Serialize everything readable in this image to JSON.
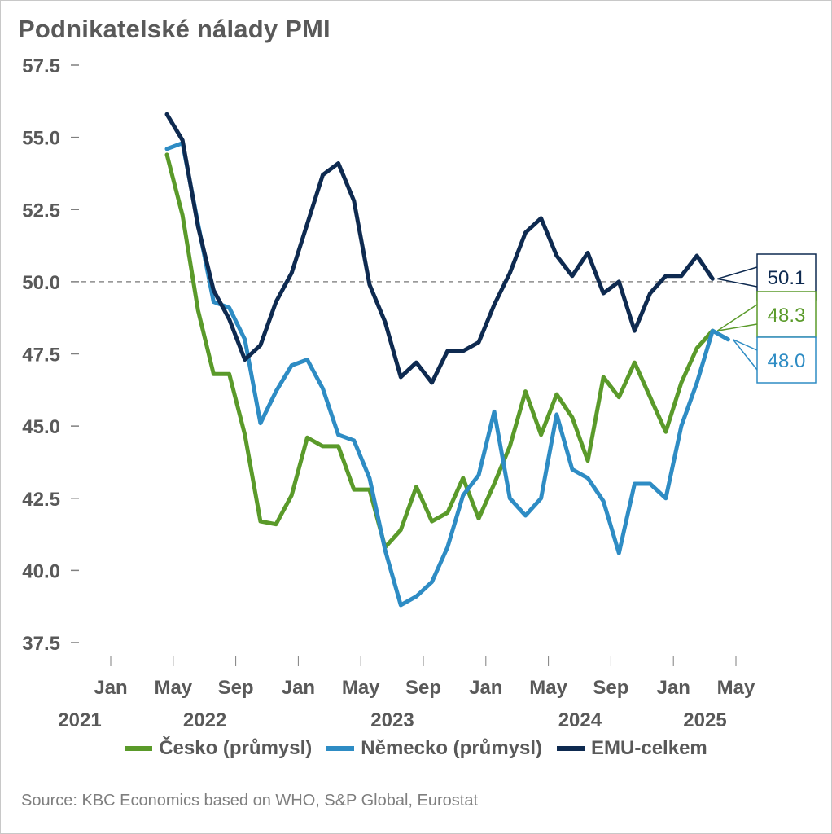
{
  "chart_data": {
    "type": "line",
    "title": "Podnikatelské nálady PMI",
    "ylim": [
      37.5,
      57.5
    ],
    "yticks": [
      "57.5",
      "55.0",
      "52.5",
      "50.0",
      "47.5",
      "45.0",
      "42.5",
      "40.0",
      "37.5"
    ],
    "reference_line": 50.0,
    "x_start": "2021-03",
    "xticks": [
      {
        "month": "Jan",
        "year": "2021",
        "date": "2021-01"
      },
      {
        "month": "May",
        "year": "",
        "date": "2021-05"
      },
      {
        "month": "Sep",
        "year": "2022",
        "date": "2021-09"
      },
      {
        "month": "Jan",
        "year": "",
        "date": "2022-01"
      },
      {
        "month": "May",
        "year": "",
        "date": "2022-05"
      },
      {
        "month": "Sep",
        "year": "2023",
        "date": "2022-09"
      },
      {
        "month": "Jan",
        "year": "",
        "date": "2023-01"
      },
      {
        "month": "May",
        "year": "",
        "date": "2023-05"
      },
      {
        "month": "Sep",
        "year": "2024",
        "date": "2023-09"
      },
      {
        "month": "Jan",
        "year": "",
        "date": "2024-01"
      },
      {
        "month": "May",
        "year": "2025",
        "date": "2024-05"
      }
    ],
    "series": [
      {
        "name": "Česko (průmysl)",
        "color": "#5a9a2a",
        "end_label": "48.3",
        "values": [
          54.4,
          52.3,
          49.0,
          46.8,
          46.8,
          44.7,
          41.7,
          41.6,
          42.6,
          44.6,
          44.3,
          44.3,
          42.8,
          42.8,
          40.8,
          41.4,
          42.9,
          41.7,
          42.0,
          43.2,
          41.8,
          43.0,
          44.3,
          46.2,
          44.7,
          46.1,
          45.3,
          43.8,
          46.7,
          46.0,
          47.2,
          46.0,
          44.8,
          46.5,
          47.7,
          48.3
        ]
      },
      {
        "name": "Německo (průmysl)",
        "color": "#2e8cc4",
        "end_label": "48.0",
        "values": [
          54.6,
          54.8,
          52.0,
          49.3,
          49.1,
          48.0,
          45.1,
          46.2,
          47.1,
          47.3,
          46.3,
          44.7,
          44.5,
          43.2,
          40.7,
          38.8,
          39.1,
          39.6,
          40.8,
          42.6,
          43.3,
          45.5,
          42.5,
          41.9,
          42.5,
          45.4,
          43.5,
          43.2,
          42.4,
          40.6,
          43.0,
          43.0,
          42.5,
          45.0,
          46.5,
          48.3,
          48.0
        ]
      },
      {
        "name": "EMU-celkem",
        "color": "#0e2a50",
        "end_label": "50.1",
        "values": [
          55.8,
          54.9,
          51.9,
          49.7,
          48.7,
          47.3,
          47.8,
          49.3,
          50.3,
          52.0,
          53.7,
          54.1,
          52.8,
          49.9,
          48.6,
          46.7,
          47.2,
          46.5,
          47.6,
          47.6,
          47.9,
          49.2,
          50.3,
          51.7,
          52.2,
          50.9,
          50.2,
          51.0,
          49.6,
          50.0,
          48.3,
          49.6,
          50.2,
          50.2,
          50.9,
          50.1
        ]
      }
    ]
  },
  "source": "Source: KBC Economics based on WHO, S&P Global, Eurostat"
}
